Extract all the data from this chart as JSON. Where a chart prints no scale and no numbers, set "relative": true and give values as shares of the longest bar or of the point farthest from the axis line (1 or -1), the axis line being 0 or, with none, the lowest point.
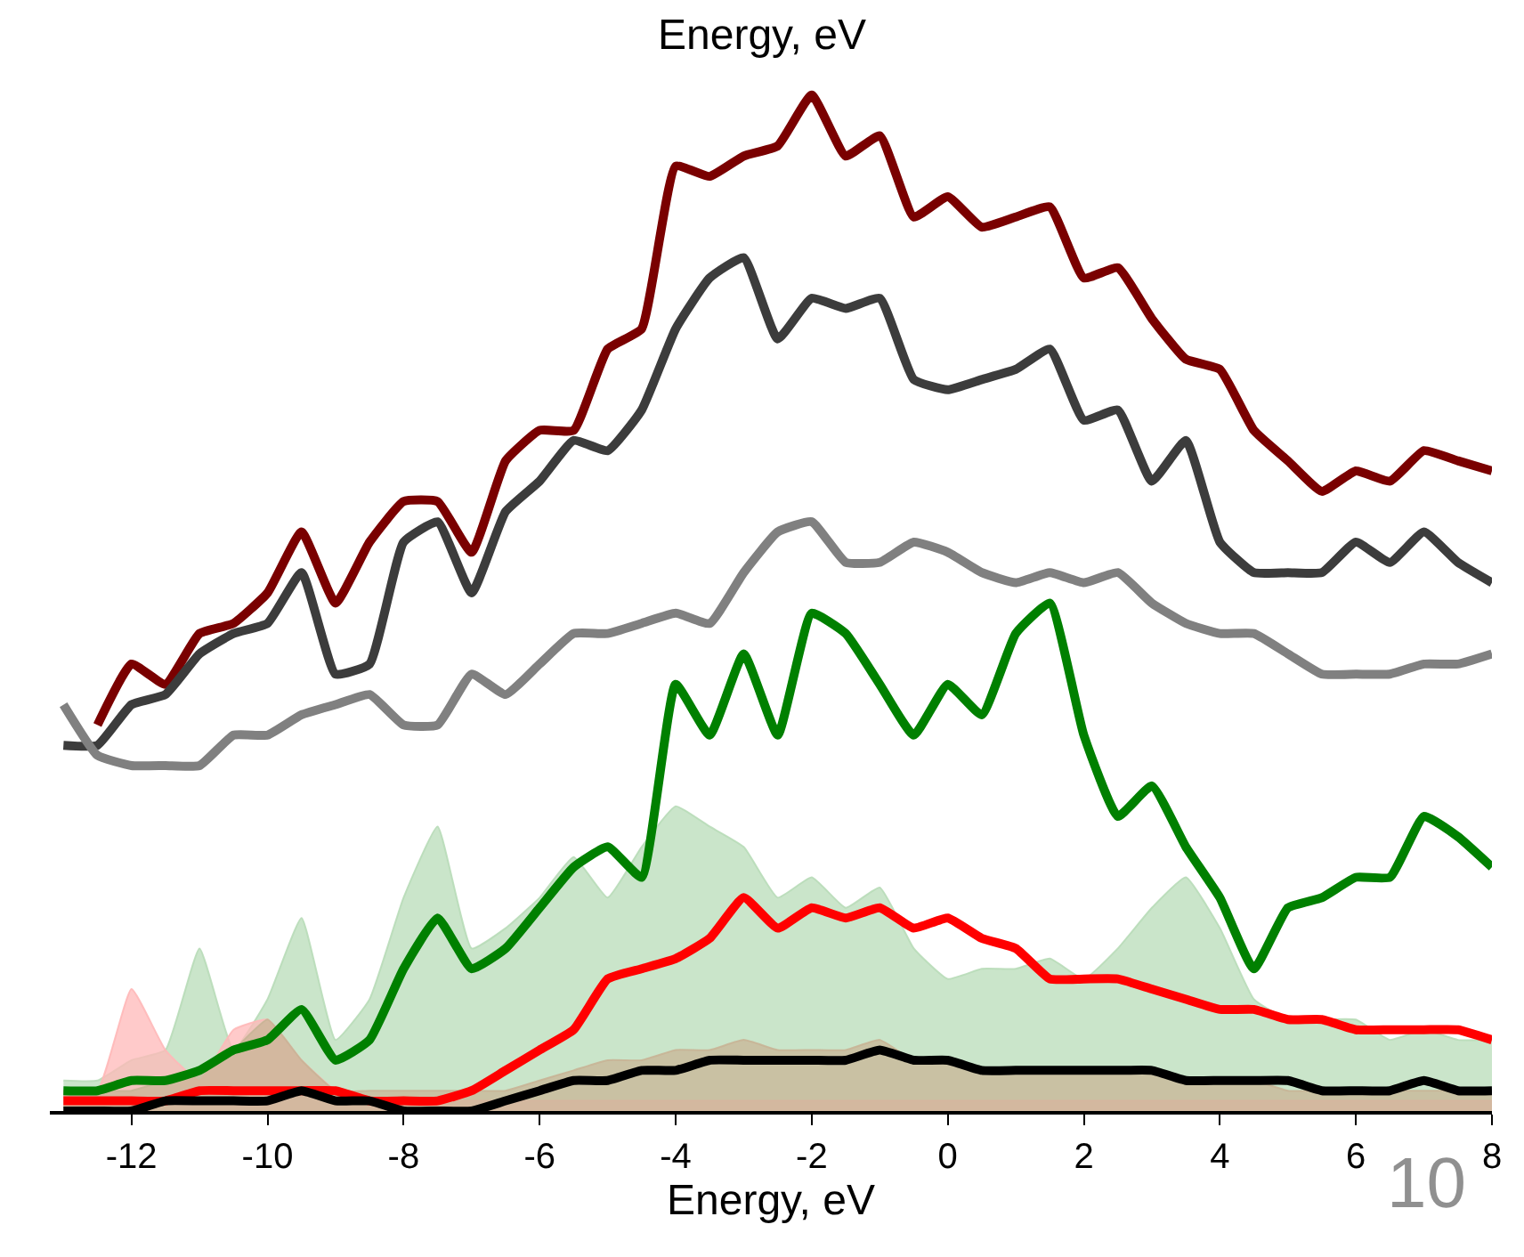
{
  "chart_data": {
    "type": "line",
    "title": "Energy, eV",
    "xlabel": "Energy, eV",
    "relative": true,
    "xlim": [
      -13.2,
      8
    ],
    "xticks": [
      -12,
      -10,
      -8,
      -6,
      -4,
      -2,
      0,
      2,
      4,
      6,
      8
    ],
    "annotations": [
      "10"
    ],
    "x": [
      -13,
      -12.5,
      -12,
      -11.5,
      -11,
      -10.5,
      -10,
      -9.5,
      -9,
      -8.5,
      -8,
      -7.5,
      -7,
      -6.5,
      -6,
      -5.5,
      -5,
      -4.5,
      -4,
      -3.5,
      -3,
      -2.5,
      -2,
      -1.5,
      -1,
      -0.5,
      0,
      0.5,
      1,
      1.5,
      2,
      2.5,
      3,
      3.5,
      4,
      4.5,
      5,
      5.5,
      6,
      6.5,
      7,
      7.5,
      8
    ],
    "series": [
      {
        "type": "area",
        "color": "#b8dcb8",
        "values": [
          0.03,
          0.03,
          0.05,
          0.06,
          0.16,
          0.06,
          0.11,
          0.19,
          0.07,
          0.11,
          0.21,
          0.28,
          0.16,
          0.18,
          0.21,
          0.25,
          0.21,
          0.26,
          0.3,
          0.28,
          0.26,
          0.21,
          0.23,
          0.2,
          0.22,
          0.16,
          0.13,
          0.14,
          0.14,
          0.15,
          0.13,
          0.16,
          0.2,
          0.23,
          0.18,
          0.11,
          0.09,
          0.09,
          0.09,
          0.07,
          0.08,
          0.07,
          0.07
        ]
      },
      {
        "type": "area",
        "color": "#ffb8b8",
        "values": [
          0.02,
          0.02,
          0.12,
          0.06,
          0.03,
          0.08,
          0.09,
          0.05,
          0.02,
          0.01,
          0.01,
          0.01,
          0.01,
          0.01,
          0.01,
          0.01,
          0.01,
          0.01,
          0.01,
          0.01,
          0.01,
          0.01,
          0.01,
          0.01,
          0.01,
          0.01,
          0.01,
          0.01,
          0.01,
          0.01,
          0.01,
          0.01,
          0.01,
          0.01,
          0.01,
          0.01,
          0.01,
          0.01,
          0.01,
          0.01,
          0.01,
          0.01,
          0.01
        ]
      },
      {
        "type": "area",
        "color": "#c8b496",
        "values": [
          0.02,
          0.02,
          0.02,
          0.03,
          0.04,
          0.06,
          0.09,
          0.05,
          0.02,
          0.02,
          0.02,
          0.02,
          0.02,
          0.02,
          0.03,
          0.04,
          0.05,
          0.05,
          0.06,
          0.06,
          0.07,
          0.06,
          0.06,
          0.06,
          0.07,
          0.05,
          0.05,
          0.04,
          0.04,
          0.04,
          0.04,
          0.04,
          0.04,
          0.03,
          0.03,
          0.03,
          0.02,
          0.02,
          0.02,
          0.02,
          0.02,
          0.02,
          0.02
        ]
      },
      {
        "color": "#7a0000",
        "values": [
          null,
          0.38,
          0.44,
          0.42,
          0.47,
          0.48,
          0.51,
          0.57,
          0.5,
          0.56,
          0.6,
          0.6,
          0.55,
          0.64,
          0.67,
          0.67,
          0.75,
          0.77,
          0.93,
          0.92,
          0.94,
          0.95,
          1.0,
          0.94,
          0.96,
          0.88,
          0.9,
          0.87,
          0.88,
          0.89,
          0.82,
          0.83,
          0.78,
          0.74,
          0.73,
          0.67,
          0.64,
          0.61,
          0.63,
          0.62,
          0.65,
          0.64,
          0.63
        ]
      },
      {
        "color": "#3c3c3c",
        "values": [
          0.36,
          0.36,
          0.4,
          0.41,
          0.45,
          0.47,
          0.48,
          0.53,
          0.43,
          0.44,
          0.56,
          0.58,
          0.51,
          0.59,
          0.62,
          0.66,
          0.65,
          0.69,
          0.77,
          0.82,
          0.84,
          0.76,
          0.8,
          0.79,
          0.8,
          0.72,
          0.71,
          0.72,
          0.73,
          0.75,
          0.68,
          0.69,
          0.62,
          0.66,
          0.56,
          0.53,
          0.53,
          0.53,
          0.56,
          0.54,
          0.57,
          0.54,
          0.52
        ]
      },
      {
        "color": "#808080",
        "values": [
          0.4,
          0.35,
          0.34,
          0.34,
          0.34,
          0.37,
          0.37,
          0.39,
          0.4,
          0.41,
          0.38,
          0.38,
          0.43,
          0.41,
          0.44,
          0.47,
          0.47,
          0.48,
          0.49,
          0.48,
          0.53,
          0.57,
          0.58,
          0.54,
          0.54,
          0.56,
          0.55,
          0.53,
          0.52,
          0.53,
          0.52,
          0.53,
          0.5,
          0.48,
          0.47,
          0.47,
          0.45,
          0.43,
          0.43,
          0.43,
          0.44,
          0.44,
          0.45
        ]
      },
      {
        "color": "#008000",
        "values": [
          0.02,
          0.02,
          0.03,
          0.03,
          0.04,
          0.06,
          0.07,
          0.1,
          0.05,
          0.07,
          0.14,
          0.19,
          0.14,
          0.16,
          0.2,
          0.24,
          0.26,
          0.23,
          0.42,
          0.37,
          0.45,
          0.37,
          0.49,
          0.47,
          0.42,
          0.37,
          0.42,
          0.39,
          0.47,
          0.5,
          0.37,
          0.29,
          0.32,
          0.26,
          0.21,
          0.14,
          0.2,
          0.21,
          0.23,
          0.23,
          0.29,
          0.27,
          0.24
        ]
      },
      {
        "color": "#ff0000",
        "values": [
          0.01,
          0.01,
          0.01,
          0.01,
          0.02,
          0.02,
          0.02,
          0.02,
          0.02,
          0.01,
          0.01,
          0.01,
          0.02,
          0.04,
          0.06,
          0.08,
          0.13,
          0.14,
          0.15,
          0.17,
          0.21,
          0.18,
          0.2,
          0.19,
          0.2,
          0.18,
          0.19,
          0.17,
          0.16,
          0.13,
          0.13,
          0.13,
          0.12,
          0.11,
          0.1,
          0.1,
          0.09,
          0.09,
          0.08,
          0.08,
          0.08,
          0.08,
          0.07
        ]
      },
      {
        "color": "#000000",
        "values": [
          0.0,
          0.0,
          0.0,
          0.01,
          0.01,
          0.01,
          0.01,
          0.02,
          0.01,
          0.01,
          0.0,
          0.0,
          0.0,
          0.01,
          0.02,
          0.03,
          0.03,
          0.04,
          0.04,
          0.05,
          0.05,
          0.05,
          0.05,
          0.05,
          0.06,
          0.05,
          0.05,
          0.04,
          0.04,
          0.04,
          0.04,
          0.04,
          0.04,
          0.03,
          0.03,
          0.03,
          0.03,
          0.02,
          0.02,
          0.02,
          0.03,
          0.02,
          0.02
        ]
      }
    ]
  }
}
